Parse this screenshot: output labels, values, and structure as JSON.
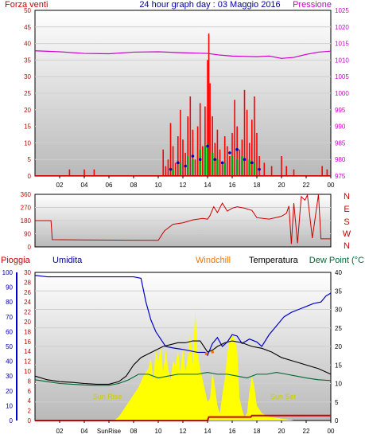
{
  "chart_data": [
    {
      "type": "bar",
      "panel": "wind",
      "title": "24 hour graph day : 03 Maggio 2016",
      "left_label": "Forza venti",
      "right_label": "Pressione",
      "y_ticks_left": [
        "0",
        "5",
        "10",
        "15",
        "20",
        "25",
        "30",
        "35",
        "40",
        "45",
        "50"
      ],
      "y_ticks_right": [
        "975",
        "980",
        "985",
        "990",
        "995",
        "1000",
        "1005",
        "1010",
        "1015",
        "1020",
        "1025"
      ],
      "ylim_left": [
        0,
        50
      ],
      "ylim_right": [
        975,
        1025
      ],
      "x_tick_labels": [
        "02",
        "04",
        "06",
        "08",
        "10",
        "12",
        "14",
        "16",
        "18",
        "20",
        "22",
        "00"
      ],
      "xlim_hours": [
        0,
        24
      ],
      "gust_color": "#ff0000",
      "avg_color": "#00aa00",
      "speed_color": "#0000cc",
      "pressure_color": "#cc00cc",
      "gust_series": [
        [
          2.8,
          2
        ],
        [
          4.0,
          2
        ],
        [
          4.8,
          2
        ],
        [
          10.4,
          8
        ],
        [
          10.6,
          3
        ],
        [
          10.8,
          5
        ],
        [
          11.0,
          16
        ],
        [
          11.2,
          9
        ],
        [
          11.4,
          4
        ],
        [
          11.6,
          12
        ],
        [
          11.8,
          20
        ],
        [
          12.0,
          11
        ],
        [
          12.2,
          7
        ],
        [
          12.4,
          18
        ],
        [
          12.6,
          24
        ],
        [
          12.8,
          14
        ],
        [
          13.0,
          5
        ],
        [
          13.2,
          15
        ],
        [
          13.4,
          22
        ],
        [
          13.6,
          9
        ],
        [
          13.8,
          21
        ],
        [
          14.0,
          35
        ],
        [
          14.1,
          43
        ],
        [
          14.2,
          28
        ],
        [
          14.4,
          18
        ],
        [
          14.6,
          10
        ],
        [
          14.8,
          14
        ],
        [
          15.0,
          8
        ],
        [
          15.2,
          4
        ],
        [
          15.4,
          12
        ],
        [
          15.6,
          9
        ],
        [
          15.8,
          6
        ],
        [
          16.0,
          13
        ],
        [
          16.2,
          23
        ],
        [
          16.4,
          15
        ],
        [
          16.6,
          8
        ],
        [
          16.8,
          11
        ],
        [
          17.0,
          26
        ],
        [
          17.2,
          20
        ],
        [
          17.4,
          10
        ],
        [
          17.6,
          17
        ],
        [
          17.8,
          24
        ],
        [
          18.0,
          13
        ],
        [
          18.2,
          6
        ],
        [
          18.6,
          4
        ],
        [
          19.2,
          3
        ],
        [
          20.0,
          6
        ],
        [
          20.4,
          3
        ],
        [
          21.0,
          2
        ],
        [
          23.3,
          3
        ],
        [
          23.7,
          2
        ]
      ],
      "avg_series": [
        [
          11.2,
          2
        ],
        [
          11.8,
          4
        ],
        [
          12.4,
          6
        ],
        [
          12.8,
          5
        ],
        [
          13.4,
          8
        ],
        [
          13.8,
          9
        ],
        [
          14.0,
          10
        ],
        [
          14.4,
          7
        ],
        [
          14.8,
          5
        ],
        [
          15.4,
          4
        ],
        [
          16.0,
          6
        ],
        [
          16.4,
          5
        ],
        [
          16.8,
          6
        ],
        [
          17.4,
          5
        ],
        [
          17.8,
          4
        ]
      ],
      "speed_points": [
        [
          11.0,
          2
        ],
        [
          11.6,
          4
        ],
        [
          12.2,
          3
        ],
        [
          12.8,
          6
        ],
        [
          13.4,
          5
        ],
        [
          14.0,
          9
        ],
        [
          14.6,
          5
        ],
        [
          15.2,
          4
        ],
        [
          15.8,
          7
        ],
        [
          16.4,
          8
        ],
        [
          17.0,
          5
        ],
        [
          17.6,
          4
        ],
        [
          18.2,
          2
        ]
      ],
      "pressure_series": [
        [
          0,
          1012.8
        ],
        [
          2,
          1012.5
        ],
        [
          4,
          1012.0
        ],
        [
          6,
          1011.9
        ],
        [
          8,
          1012.4
        ],
        [
          10,
          1012.5
        ],
        [
          12,
          1012.2
        ],
        [
          14,
          1012.0
        ],
        [
          15,
          1011.5
        ],
        [
          16,
          1011.2
        ],
        [
          18,
          1011.0
        ],
        [
          19,
          1011.2
        ],
        [
          20,
          1010.5
        ],
        [
          21,
          1010.8
        ],
        [
          22,
          1011.7
        ],
        [
          23,
          1012.4
        ],
        [
          24,
          1012.7
        ]
      ]
    },
    {
      "type": "line",
      "panel": "direction",
      "right_labels": [
        "N",
        "W",
        "S",
        "E",
        "N"
      ],
      "y_ticks": [
        "0",
        "90",
        "180",
        "270",
        "360"
      ],
      "ylim": [
        0,
        360
      ],
      "x_tick_labels": [
        "02",
        "04",
        "06",
        "08",
        "10",
        "12",
        "14",
        "16",
        "18",
        "20",
        "22",
        "00"
      ],
      "color": "#cc0000",
      "series": [
        [
          0,
          180
        ],
        [
          1.3,
          180
        ],
        [
          1.4,
          50
        ],
        [
          4,
          48
        ],
        [
          8,
          46
        ],
        [
          10.0,
          45
        ],
        [
          10.5,
          110
        ],
        [
          11.2,
          155
        ],
        [
          12.0,
          165
        ],
        [
          12.8,
          185
        ],
        [
          13.6,
          195
        ],
        [
          14.0,
          190
        ],
        [
          14.2,
          215
        ],
        [
          14.5,
          275
        ],
        [
          14.8,
          235
        ],
        [
          15.2,
          300
        ],
        [
          15.6,
          245
        ],
        [
          16.0,
          265
        ],
        [
          16.4,
          275
        ],
        [
          17.0,
          265
        ],
        [
          17.6,
          250
        ],
        [
          18.0,
          200
        ],
        [
          18.5,
          195
        ],
        [
          19.0,
          190
        ],
        [
          19.5,
          200
        ],
        [
          20.0,
          210
        ],
        [
          20.4,
          230
        ],
        [
          20.6,
          280
        ],
        [
          20.8,
          20
        ],
        [
          21.0,
          300
        ],
        [
          21.3,
          25
        ],
        [
          21.6,
          345
        ],
        [
          21.9,
          320
        ],
        [
          22.1,
          355
        ],
        [
          22.5,
          60
        ],
        [
          23.0,
          360
        ],
        [
          23.2,
          55
        ],
        [
          24.0,
          55
        ]
      ]
    },
    {
      "type": "area",
      "panel": "temperature",
      "left_label_rain": "Pioggia",
      "left_label_humidity": "Umidita",
      "label_windchill": "Windchill",
      "label_temperature": "Temperatura",
      "label_dewpoint": "Dew Point (°C",
      "rain_ticks": [
        "0",
        "2",
        "4",
        "6",
        "8",
        "10",
        "12",
        "14",
        "16",
        "18",
        "20",
        "22",
        "24",
        "26",
        "28",
        "30"
      ],
      "humidity_ticks": [
        "0",
        "10",
        "20",
        "30",
        "40",
        "50",
        "60",
        "70",
        "80",
        "90",
        "100"
      ],
      "temp_ticks": [
        "0",
        "5",
        "10",
        "15",
        "20",
        "25",
        "30",
        "35",
        "40"
      ],
      "ylim_temp": [
        0,
        40
      ],
      "ylim_humidity": [
        0,
        100
      ],
      "x_tick_labels": [
        "02",
        "04",
        "SunRise",
        "08",
        "10",
        "12",
        "14",
        "16",
        "18",
        "20",
        "22",
        "00"
      ],
      "sun_rise_label": "Sun Rise",
      "sun_set_label": "Sun Set",
      "humidity_color": "#0000cc",
      "temperature_color": "#000000",
      "dewpoint_color": "#006633",
      "solar_color": "#ffff00",
      "rain_color": "#cc0000",
      "humidity_series": [
        [
          0,
          98
        ],
        [
          1,
          97
        ],
        [
          2,
          97
        ],
        [
          4,
          97
        ],
        [
          6,
          97
        ],
        [
          8,
          97
        ],
        [
          8.6,
          96
        ],
        [
          9.0,
          80
        ],
        [
          9.4,
          68
        ],
        [
          9.8,
          60
        ],
        [
          10.2,
          55
        ],
        [
          10.6,
          50
        ],
        [
          11.2,
          49
        ],
        [
          12.0,
          48
        ],
        [
          12.6,
          47
        ],
        [
          13.2,
          46
        ],
        [
          13.8,
          46
        ],
        [
          14.0,
          44
        ],
        [
          14.4,
          52
        ],
        [
          14.8,
          56
        ],
        [
          15.2,
          50
        ],
        [
          15.6,
          53
        ],
        [
          16.0,
          58
        ],
        [
          16.4,
          57
        ],
        [
          16.8,
          52
        ],
        [
          17.4,
          55
        ],
        [
          18.0,
          53
        ],
        [
          18.4,
          50
        ],
        [
          19.0,
          58
        ],
        [
          19.6,
          64
        ],
        [
          20.2,
          70
        ],
        [
          20.8,
          73
        ],
        [
          21.4,
          75
        ],
        [
          22.0,
          77
        ],
        [
          22.6,
          79
        ],
        [
          23.2,
          80
        ],
        [
          23.6,
          84
        ],
        [
          24.0,
          86
        ]
      ],
      "temperature_series": [
        [
          0,
          12
        ],
        [
          1,
          11
        ],
        [
          2,
          10.5
        ],
        [
          3,
          10.3
        ],
        [
          4,
          10
        ],
        [
          5,
          9.8
        ],
        [
          6,
          9.8
        ],
        [
          6.8,
          10.5
        ],
        [
          7.4,
          12
        ],
        [
          8.0,
          15
        ],
        [
          8.6,
          17
        ],
        [
          9.2,
          18
        ],
        [
          9.8,
          19
        ],
        [
          10.4,
          20
        ],
        [
          11.0,
          20.5
        ],
        [
          11.6,
          21
        ],
        [
          12.2,
          21
        ],
        [
          12.8,
          21.5
        ],
        [
          13.4,
          21.5
        ],
        [
          14.0,
          18.5
        ],
        [
          14.4,
          19
        ],
        [
          14.8,
          20
        ],
        [
          15.4,
          21
        ],
        [
          16.0,
          21.5
        ],
        [
          16.8,
          21
        ],
        [
          17.6,
          20
        ],
        [
          18.4,
          19.5
        ],
        [
          19.2,
          18.5
        ],
        [
          20.0,
          17
        ],
        [
          21.0,
          16
        ],
        [
          22.0,
          15
        ],
        [
          23.0,
          14
        ],
        [
          24.0,
          12.5
        ]
      ],
      "dewpoint_series": [
        [
          0,
          11
        ],
        [
          1,
          10.5
        ],
        [
          2,
          10
        ],
        [
          3,
          9.8
        ],
        [
          4,
          9.6
        ],
        [
          5,
          9.5
        ],
        [
          6,
          9.5
        ],
        [
          6.8,
          10
        ],
        [
          7.6,
          11
        ],
        [
          8.4,
          12.5
        ],
        [
          9.2,
          12.5
        ],
        [
          10.0,
          11.5
        ],
        [
          10.8,
          12
        ],
        [
          11.6,
          12.5
        ],
        [
          12.4,
          12.5
        ],
        [
          13.2,
          12.5
        ],
        [
          14.0,
          13
        ],
        [
          14.8,
          12.5
        ],
        [
          15.6,
          12.5
        ],
        [
          16.4,
          12
        ],
        [
          17.2,
          11.5
        ],
        [
          18.0,
          12.5
        ],
        [
          18.8,
          12.5
        ],
        [
          19.6,
          13
        ],
        [
          20.4,
          12.5
        ],
        [
          21.2,
          12
        ],
        [
          22.0,
          11.5
        ],
        [
          23.0,
          11
        ],
        [
          24.0,
          10.8
        ]
      ],
      "windchill_points": [
        [
          13.9,
          18
        ],
        [
          14.4,
          18.5
        ]
      ],
      "solar_series": [
        [
          0,
          0
        ],
        [
          6.4,
          0
        ],
        [
          6.8,
          1
        ],
        [
          7.2,
          3
        ],
        [
          7.6,
          5
        ],
        [
          8.0,
          7
        ],
        [
          8.4,
          9
        ],
        [
          8.8,
          12
        ],
        [
          9.2,
          14
        ],
        [
          9.4,
          17
        ],
        [
          9.6,
          11
        ],
        [
          9.8,
          19
        ],
        [
          10.0,
          16
        ],
        [
          10.2,
          20
        ],
        [
          10.4,
          13
        ],
        [
          10.6,
          19
        ],
        [
          10.8,
          14
        ],
        [
          11.0,
          11
        ],
        [
          11.2,
          16
        ],
        [
          11.4,
          15
        ],
        [
          11.6,
          19
        ],
        [
          11.8,
          13
        ],
        [
          12.0,
          20
        ],
        [
          12.2,
          13
        ],
        [
          12.4,
          17
        ],
        [
          12.6,
          24
        ],
        [
          12.8,
          15
        ],
        [
          13.0,
          30
        ],
        [
          13.2,
          18
        ],
        [
          13.4,
          14
        ],
        [
          13.6,
          11
        ],
        [
          13.8,
          8
        ],
        [
          14.0,
          5
        ],
        [
          14.2,
          6
        ],
        [
          14.4,
          13
        ],
        [
          14.6,
          9
        ],
        [
          14.8,
          4
        ],
        [
          15.0,
          2
        ],
        [
          15.2,
          7
        ],
        [
          15.4,
          11
        ],
        [
          15.6,
          18
        ],
        [
          15.8,
          22
        ],
        [
          16.0,
          23
        ],
        [
          16.2,
          22
        ],
        [
          16.4,
          19
        ],
        [
          16.6,
          6
        ],
        [
          16.8,
          3
        ],
        [
          17.0,
          1
        ],
        [
          17.2,
          2
        ],
        [
          17.4,
          8
        ],
        [
          17.6,
          12
        ],
        [
          17.8,
          9
        ],
        [
          18.0,
          4
        ],
        [
          18.4,
          2
        ],
        [
          19.0,
          1
        ],
        [
          20.0,
          0.5
        ],
        [
          21.0,
          0
        ],
        [
          24.0,
          0
        ]
      ],
      "rain_series": [
        [
          0,
          0
        ],
        [
          14.0,
          0
        ],
        [
          14.1,
          0.7
        ],
        [
          17.5,
          0.7
        ],
        [
          17.6,
          1
        ],
        [
          24,
          1
        ]
      ]
    }
  ]
}
